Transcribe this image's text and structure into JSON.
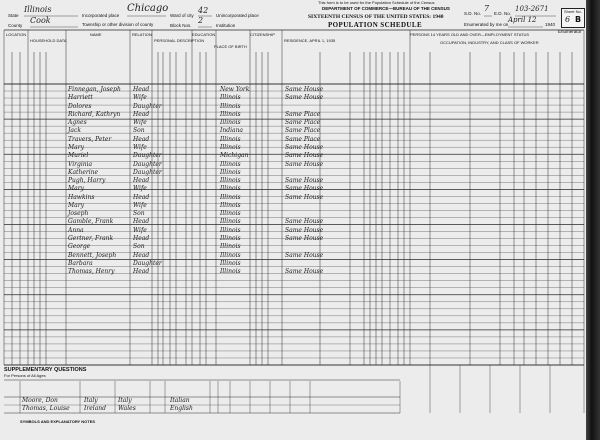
{
  "notice": "This form is to be used for the Population Schedule of the Census",
  "header": {
    "department": "DEPARTMENT OF COMMERCE—BUREAU OF THE CENSUS",
    "title": "SIXTEENTH CENSUS OF THE UNITED STATES: 1940",
    "subtitle": "POPULATION SCHEDULE",
    "state_label": "State",
    "state": "Illinois",
    "county_label": "County",
    "county": "Cook",
    "place_label": "Incorporated place",
    "place": "Chicago",
    "township_label": "Township or other division of county",
    "ward_label": "Ward of city",
    "ward": "42",
    "block_label": "Block Nos.",
    "block": "2",
    "unincorporated_label": "Unincorporated place",
    "institution_label": "Institution",
    "sd_label": "S.D. No.",
    "sd": "7",
    "ed_label": "E.D. No.",
    "ed": "103-2671",
    "enumerated_label": "Enumerated by me on",
    "enumerated_date": "April 12",
    "year_suffix": "1940",
    "enumerator_label": "Enumerator",
    "sheet_label": "Sheet No.",
    "sheet_no": "6",
    "sheet_side": "B"
  },
  "section_headers": {
    "location": "LOCATION",
    "household": "HOUSEHOLD DATA",
    "name": "NAME",
    "relation": "RELATION",
    "personal": "PERSONAL DESCRIPTION",
    "education": "EDUCATION",
    "birthplace": "PLACE OF BIRTH",
    "citizenship": "CITIZENSHIP",
    "residence": "RESIDENCE, APRIL 1, 1935",
    "employment": "PERSONS 14 YEARS OLD AND OVER—EMPLOYMENT STATUS",
    "occupation": "OCCUPATION, INDUSTRY, AND CLASS OF WORKER"
  },
  "rows": [
    {
      "name": "Finnegan, Joseph",
      "relation": "Head",
      "birthplace": "New York",
      "residence": "Same House"
    },
    {
      "name": "Harriett",
      "relation": "Wife",
      "birthplace": "Illinois",
      "residence": "Same House"
    },
    {
      "name": "Dolores",
      "relation": "Daughter",
      "birthplace": "Illinois",
      "residence": ""
    },
    {
      "name": "Richard, Kathryn",
      "relation": "Head",
      "birthplace": "Illinois",
      "residence": "Same Place"
    },
    {
      "name": "Agnes",
      "relation": "Wife",
      "birthplace": "Illinois",
      "residence": "Same Place"
    },
    {
      "name": "Jack",
      "relation": "Son",
      "birthplace": "Indiana",
      "residence": "Same Place"
    },
    {
      "name": "Travers, Peter",
      "relation": "Head",
      "birthplace": "Illinois",
      "residence": "Same Place"
    },
    {
      "name": "Mary",
      "relation": "Wife",
      "birthplace": "Illinois",
      "residence": "Same House"
    },
    {
      "name": "Muriel",
      "relation": "Daughter",
      "birthplace": "Michigan",
      "residence": "Same House"
    },
    {
      "name": "Virginia",
      "relation": "Daughter",
      "birthplace": "Illinois",
      "residence": "Same House"
    },
    {
      "name": "Katherine",
      "relation": "Daughter",
      "birthplace": "Illinois",
      "residence": ""
    },
    {
      "name": "Pugh, Harry",
      "relation": "Head",
      "birthplace": "Illinois",
      "residence": "Same House"
    },
    {
      "name": "Mary",
      "relation": "Wife",
      "birthplace": "Illinois",
      "residence": "Same House"
    },
    {
      "name": "Hawkins",
      "relation": "Head",
      "birthplace": "Illinois",
      "residence": "Same House"
    },
    {
      "name": "Mary",
      "relation": "Wife",
      "birthplace": "Illinois",
      "residence": ""
    },
    {
      "name": "Joseph",
      "relation": "Son",
      "birthplace": "Illinois",
      "residence": ""
    },
    {
      "name": "Gamble, Frank",
      "relation": "Head",
      "birthplace": "Illinois",
      "residence": "Same House"
    },
    {
      "name": "Anna",
      "relation": "Wife",
      "birthplace": "Illinois",
      "residence": "Same House"
    },
    {
      "name": "Gertner, Frank",
      "relation": "Head",
      "birthplace": "Illinois",
      "residence": "Same House"
    },
    {
      "name": "George",
      "relation": "Son",
      "birthplace": "Illinois",
      "residence": ""
    },
    {
      "name": "Bennett, Joseph",
      "relation": "Head",
      "birthplace": "Illinois",
      "residence": "Same House"
    },
    {
      "name": "Barbara",
      "relation": "Daughter",
      "birthplace": "Illinois",
      "residence": ""
    },
    {
      "name": "Thomas, Henry",
      "relation": "Head",
      "birthplace": "Illinois",
      "residence": "Same House"
    }
  ],
  "supplementary": {
    "title": "SUPPLEMENTARY QUESTIONS",
    "subtitle": "For Persons of All Ages",
    "notes_title": "SYMBOLS AND EXPLANATORY NOTES",
    "entries": [
      {
        "name": "Moore, Don",
        "father_birthplace": "Italy",
        "mother_birthplace": "Italy",
        "language": "Italian"
      },
      {
        "name": "Thomas, Louise",
        "father_birthplace": "Ireland",
        "mother_birthplace": "Wales",
        "language": "English"
      }
    ]
  }
}
